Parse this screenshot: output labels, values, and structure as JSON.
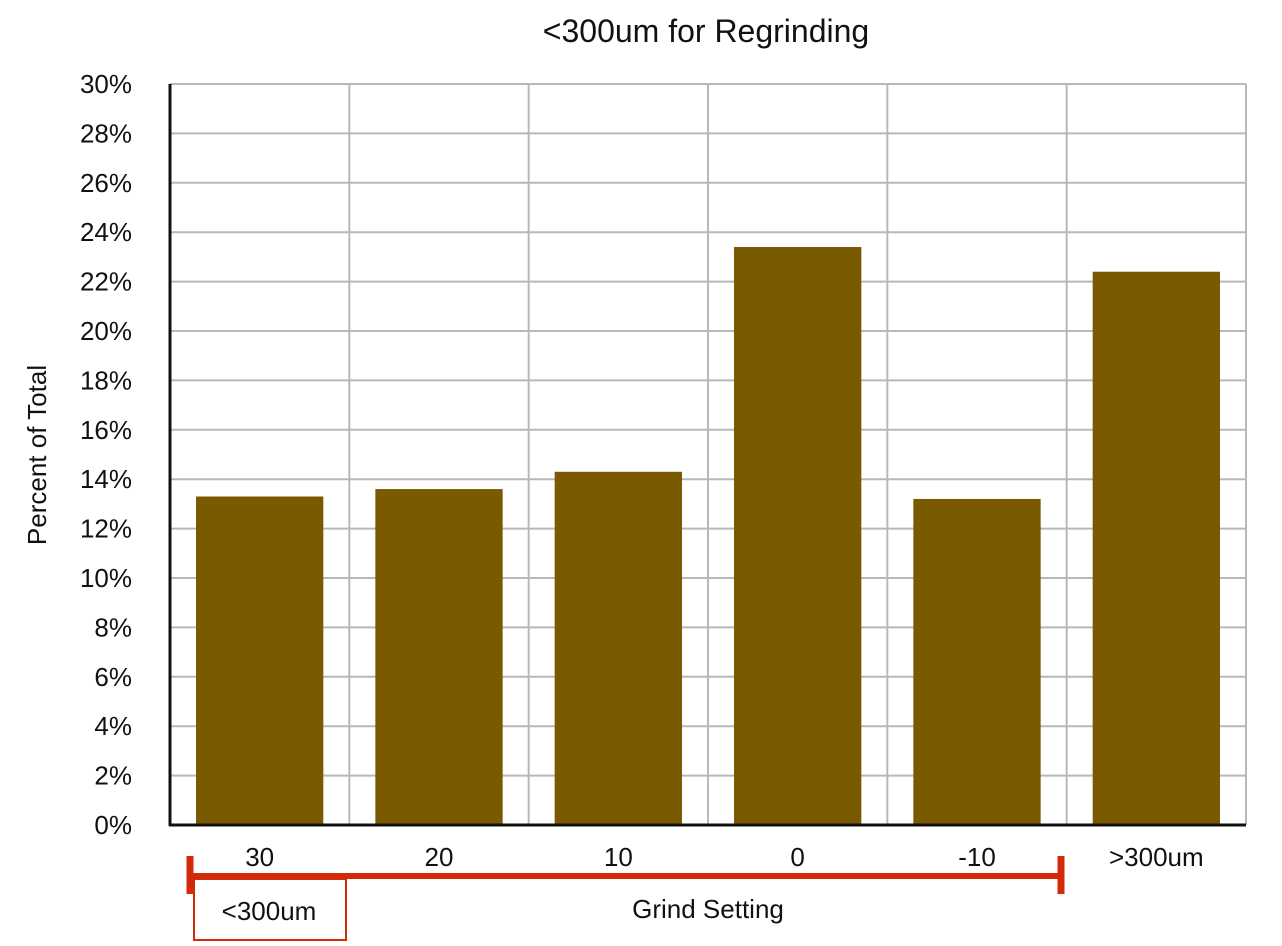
{
  "chart_data": {
    "type": "bar",
    "title": "<300um for Regrinding",
    "xlabel": "Grind Setting",
    "ylabel": "Percent of Total",
    "categories": [
      "30",
      "20",
      "10",
      "0",
      "-10",
      ">300um"
    ],
    "values": [
      13.3,
      13.6,
      14.3,
      23.4,
      13.2,
      22.4
    ],
    "ylim": [
      0,
      30
    ],
    "y_ticks": [
      "0%",
      "2%",
      "4%",
      "6%",
      "8%",
      "10%",
      "12%",
      "14%",
      "16%",
      "18%",
      "20%",
      "22%",
      "24%",
      "26%",
      "28%",
      "30%"
    ],
    "grid": true,
    "bar_color": "#7a5a00",
    "annotation": {
      "label": "<300um",
      "spans_categories": [
        "30",
        "20",
        "10",
        "0",
        "-10"
      ],
      "color": "#d42a0a"
    }
  }
}
